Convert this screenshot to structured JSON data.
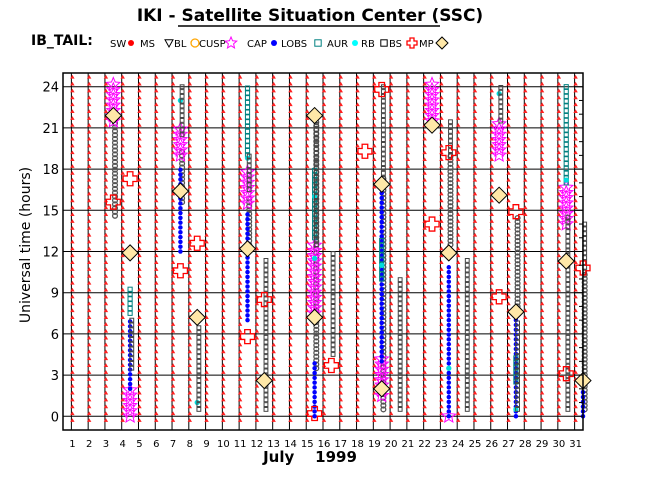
{
  "chart_data": {
    "type": "scatter",
    "title": "IKI - Satellite Situation Center (SSC)",
    "legend_title": "IB_TAIL:",
    "ylabel": "Universal time (hours)",
    "xlabel": "July    1999",
    "xlim": [
      0.5,
      31.5
    ],
    "ylim": [
      -1,
      25
    ],
    "yticks": [
      0,
      3,
      6,
      9,
      12,
      15,
      18,
      21,
      24
    ],
    "ytick_labels": [
      "0",
      "3",
      "6",
      "9",
      "12",
      "15",
      "18",
      "21",
      "24"
    ],
    "xticks": [
      1,
      2,
      3,
      4,
      5,
      6,
      7,
      8,
      9,
      10,
      11,
      12,
      13,
      14,
      15,
      16,
      17,
      18,
      19,
      20,
      21,
      22,
      23,
      24,
      25,
      26,
      27,
      28,
      29,
      30,
      31
    ],
    "xtick_labels": [
      "1",
      "2",
      "3",
      "4",
      "5",
      "6",
      "7",
      "8",
      "9",
      "10",
      "11",
      "12",
      "13",
      "14",
      "15",
      "16",
      "17",
      "18",
      "19",
      "20",
      "21",
      "22",
      "23",
      "24",
      "25",
      "26",
      "27",
      "28",
      "29",
      "30",
      "31"
    ],
    "grid": true,
    "legend": [
      {
        "label": "SW",
        "marker": "dot",
        "color": "#ff0000"
      },
      {
        "label": "MS",
        "marker": "triangle-down",
        "color": "#000000"
      },
      {
        "label": "BL",
        "marker": "circle",
        "color": "#ffa500"
      },
      {
        "label": "CUSP",
        "marker": "star",
        "color": "#ff00ff"
      },
      {
        "label": "CAP",
        "marker": "dot",
        "color": "#0000ff"
      },
      {
        "label": "LOBS",
        "marker": "square",
        "color": "#008080"
      },
      {
        "label": "AUR",
        "marker": "dot",
        "color": "#00ffff"
      },
      {
        "label": "RB",
        "marker": "square",
        "color": "#000000"
      },
      {
        "label": "BS",
        "marker": "cross",
        "color": "#ff0000"
      },
      {
        "label": "MP",
        "marker": "diamond",
        "color": "#000000"
      }
    ],
    "sw_days": [
      1,
      2,
      3,
      4,
      5,
      6,
      7,
      8,
      9,
      10,
      11,
      12,
      13,
      14,
      15,
      16,
      17,
      18,
      19,
      20,
      21,
      22,
      23,
      24,
      25,
      26,
      27,
      28,
      29,
      30,
      31
    ],
    "series": [
      {
        "name": "MS",
        "segments": [
          [
            3.6,
            14.6,
            22.0
          ],
          [
            7.6,
            15.6,
            19.5
          ],
          [
            11.6,
            12.5,
            16.0
          ],
          [
            15.6,
            3.5,
            22.0
          ],
          [
            19.6,
            0.5,
            17.5
          ],
          [
            23.6,
            12.5,
            19.0
          ],
          [
            27.6,
            8.0,
            14.5
          ],
          [
            31.6,
            0.5,
            10.5
          ]
        ]
      },
      {
        "name": "CUSP",
        "segments": [
          [
            3.5,
            21.5,
            24.3
          ],
          [
            4.5,
            0.0,
            2.2
          ],
          [
            7.5,
            19.0,
            21.0
          ],
          [
            11.5,
            15.5,
            17.8
          ],
          [
            15.5,
            7.5,
            12.5
          ],
          [
            19.5,
            1.5,
            4.5
          ],
          [
            22.5,
            21.5,
            24.5
          ],
          [
            23.5,
            0.0,
            0.0
          ],
          [
            26.5,
            19.0,
            21.5
          ],
          [
            30.5,
            14.0,
            17.0
          ]
        ]
      },
      {
        "name": "CAP",
        "segments": [
          [
            4.5,
            2.0,
            7.0
          ],
          [
            7.5,
            12.0,
            18.0
          ],
          [
            11.5,
            7.0,
            15.0
          ],
          [
            15.5,
            0.0,
            4.0
          ],
          [
            19.5,
            4.0,
            17.0
          ],
          [
            23.5,
            0.0,
            11.0
          ],
          [
            27.5,
            0.0,
            7.5
          ],
          [
            31.5,
            0.0,
            2.0
          ]
        ]
      },
      {
        "name": "LOBS",
        "segments": [
          [
            4.5,
            7.5,
            9.5
          ],
          [
            11.5,
            19.0,
            24.0
          ],
          [
            15.5,
            13.0,
            18.0
          ],
          [
            19.5,
            10.0,
            13.0
          ],
          [
            27.5,
            2.5,
            4.5
          ],
          [
            30.5,
            17.0,
            24.0
          ]
        ]
      },
      {
        "name": "AUR",
        "points": [
          [
            8.5,
            1.0
          ],
          [
            11.5,
            18.8
          ],
          [
            15.5,
            11.5
          ],
          [
            15.5,
            16.0
          ],
          [
            19.5,
            11.0
          ],
          [
            23.5,
            3.5
          ],
          [
            26.5,
            23.5
          ],
          [
            27.5,
            0.5
          ],
          [
            30.5,
            17.2
          ],
          [
            7.5,
            23.0
          ]
        ]
      },
      {
        "name": "RB",
        "segments": [
          [
            4.6,
            3.5,
            7.0
          ],
          [
            7.6,
            20.5,
            24.0
          ],
          [
            8.6,
            0.5,
            6.5
          ],
          [
            11.6,
            16.5,
            19.0
          ],
          [
            12.6,
            0.5,
            11.5
          ],
          [
            15.6,
            12.5,
            21.5
          ],
          [
            16.6,
            4.5,
            12.0
          ],
          [
            19.6,
            17.0,
            24.0
          ],
          [
            20.6,
            0.5,
            10.0
          ],
          [
            23.6,
            19.0,
            21.5
          ],
          [
            24.6,
            0.5,
            11.5
          ],
          [
            26.6,
            21.5,
            24.0
          ],
          [
            27.6,
            0.5,
            7.0
          ],
          [
            30.6,
            0.5,
            14.5
          ],
          [
            31.6,
            10.5,
            14.0
          ]
        ]
      },
      {
        "name": "BS",
        "points": [
          [
            3.5,
            15.6
          ],
          [
            4.5,
            17.3
          ],
          [
            7.5,
            10.6
          ],
          [
            8.5,
            12.6
          ],
          [
            11.5,
            5.8
          ],
          [
            12.5,
            8.5
          ],
          [
            16.5,
            3.7
          ],
          [
            15.5,
            0.2
          ],
          [
            18.5,
            19.3
          ],
          [
            19.5,
            23.8
          ],
          [
            22.5,
            14.0
          ],
          [
            23.5,
            19.2
          ],
          [
            26.5,
            8.7
          ],
          [
            27.5,
            14.9
          ],
          [
            30.5,
            3.1
          ],
          [
            31.5,
            10.8
          ]
        ]
      },
      {
        "name": "MP",
        "points": [
          [
            3.5,
            21.9
          ],
          [
            4.5,
            11.9
          ],
          [
            7.5,
            16.4
          ],
          [
            8.5,
            7.2
          ],
          [
            11.5,
            12.2
          ],
          [
            12.5,
            2.6
          ],
          [
            15.5,
            21.9
          ],
          [
            15.5,
            7.2
          ],
          [
            19.5,
            16.9
          ],
          [
            19.5,
            2.0
          ],
          [
            22.5,
            21.2
          ],
          [
            23.5,
            11.9
          ],
          [
            26.5,
            16.1
          ],
          [
            27.5,
            7.6
          ],
          [
            30.5,
            11.3
          ],
          [
            31.5,
            2.6
          ]
        ]
      }
    ]
  }
}
